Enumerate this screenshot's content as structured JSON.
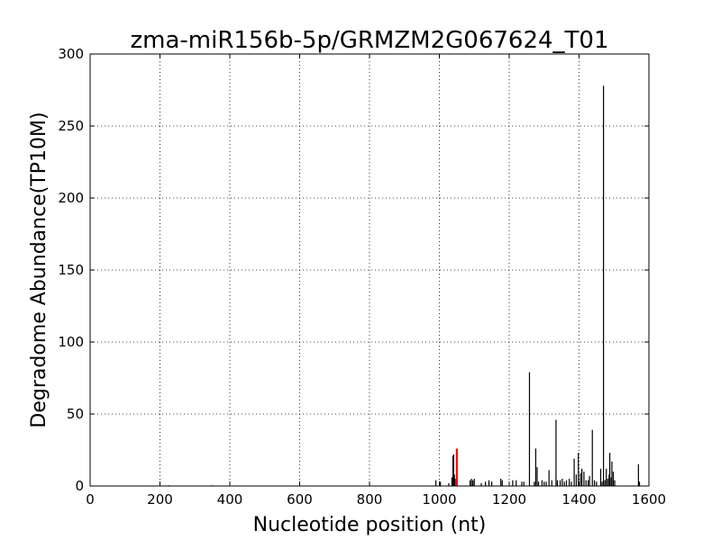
{
  "chart_data": {
    "type": "bar",
    "title": "zma-miR156b-5p/GRMZM2G067624_T01",
    "xlabel": "Nucleotide position (nt)",
    "ylabel": "Degradome Abundance(TP10M)",
    "xlim": [
      0,
      1600
    ],
    "ylim": [
      0,
      300
    ],
    "xticks": [
      0,
      200,
      400,
      600,
      800,
      1000,
      1200,
      1400,
      1600
    ],
    "yticks": [
      0,
      50,
      100,
      150,
      200,
      250,
      300
    ],
    "xtick_labels": [
      "0",
      "200",
      "400",
      "600",
      "800",
      "1000",
      "1200",
      "1400",
      "1600"
    ],
    "ytick_labels": [
      "0",
      "50",
      "100",
      "150",
      "200",
      "250",
      "300"
    ],
    "grid": true,
    "series": [
      {
        "color": "#000000",
        "points": [
          {
            "x": 225,
            "y": 0.5
          },
          {
            "x": 348,
            "y": 0.5
          },
          {
            "x": 990,
            "y": 4
          },
          {
            "x": 1003,
            "y": 3
          },
          {
            "x": 1027,
            "y": 2
          },
          {
            "x": 1036,
            "y": 6
          },
          {
            "x": 1039,
            "y": 21
          },
          {
            "x": 1041,
            "y": 22
          },
          {
            "x": 1043,
            "y": 8
          },
          {
            "x": 1045,
            "y": 5
          },
          {
            "x": 1088,
            "y": 4
          },
          {
            "x": 1092,
            "y": 5
          },
          {
            "x": 1096,
            "y": 4
          },
          {
            "x": 1100,
            "y": 5
          },
          {
            "x": 1120,
            "y": 2
          },
          {
            "x": 1132,
            "y": 3
          },
          {
            "x": 1142,
            "y": 4
          },
          {
            "x": 1150,
            "y": 3
          },
          {
            "x": 1176,
            "y": 5
          },
          {
            "x": 1180,
            "y": 4
          },
          {
            "x": 1210,
            "y": 4
          },
          {
            "x": 1220,
            "y": 4
          },
          {
            "x": 1236,
            "y": 3
          },
          {
            "x": 1242,
            "y": 3
          },
          {
            "x": 1258,
            "y": 79
          },
          {
            "x": 1272,
            "y": 3
          },
          {
            "x": 1276,
            "y": 26
          },
          {
            "x": 1280,
            "y": 13
          },
          {
            "x": 1284,
            "y": 3
          },
          {
            "x": 1294,
            "y": 4
          },
          {
            "x": 1300,
            "y": 3
          },
          {
            "x": 1306,
            "y": 3
          },
          {
            "x": 1314,
            "y": 11
          },
          {
            "x": 1322,
            "y": 4
          },
          {
            "x": 1334,
            "y": 46
          },
          {
            "x": 1338,
            "y": 4
          },
          {
            "x": 1346,
            "y": 4
          },
          {
            "x": 1352,
            "y": 5
          },
          {
            "x": 1358,
            "y": 3
          },
          {
            "x": 1364,
            "y": 4
          },
          {
            "x": 1372,
            "y": 5
          },
          {
            "x": 1378,
            "y": 3
          },
          {
            "x": 1386,
            "y": 19
          },
          {
            "x": 1392,
            "y": 8
          },
          {
            "x": 1398,
            "y": 23
          },
          {
            "x": 1404,
            "y": 9
          },
          {
            "x": 1408,
            "y": 12
          },
          {
            "x": 1414,
            "y": 10
          },
          {
            "x": 1420,
            "y": 4
          },
          {
            "x": 1426,
            "y": 4
          },
          {
            "x": 1430,
            "y": 7
          },
          {
            "x": 1438,
            "y": 39
          },
          {
            "x": 1444,
            "y": 4
          },
          {
            "x": 1450,
            "y": 3
          },
          {
            "x": 1462,
            "y": 12
          },
          {
            "x": 1466,
            "y": 3
          },
          {
            "x": 1470,
            "y": 278
          },
          {
            "x": 1474,
            "y": 4
          },
          {
            "x": 1478,
            "y": 12
          },
          {
            "x": 1482,
            "y": 5
          },
          {
            "x": 1486,
            "y": 8
          },
          {
            "x": 1488,
            "y": 23
          },
          {
            "x": 1492,
            "y": 6
          },
          {
            "x": 1494,
            "y": 17
          },
          {
            "x": 1498,
            "y": 10
          },
          {
            "x": 1502,
            "y": 4
          },
          {
            "x": 1570,
            "y": 15
          },
          {
            "x": 1573,
            "y": 3
          }
        ]
      },
      {
        "color": "#ff0000",
        "points": [
          {
            "x": 1050,
            "y": 26
          }
        ]
      }
    ]
  }
}
